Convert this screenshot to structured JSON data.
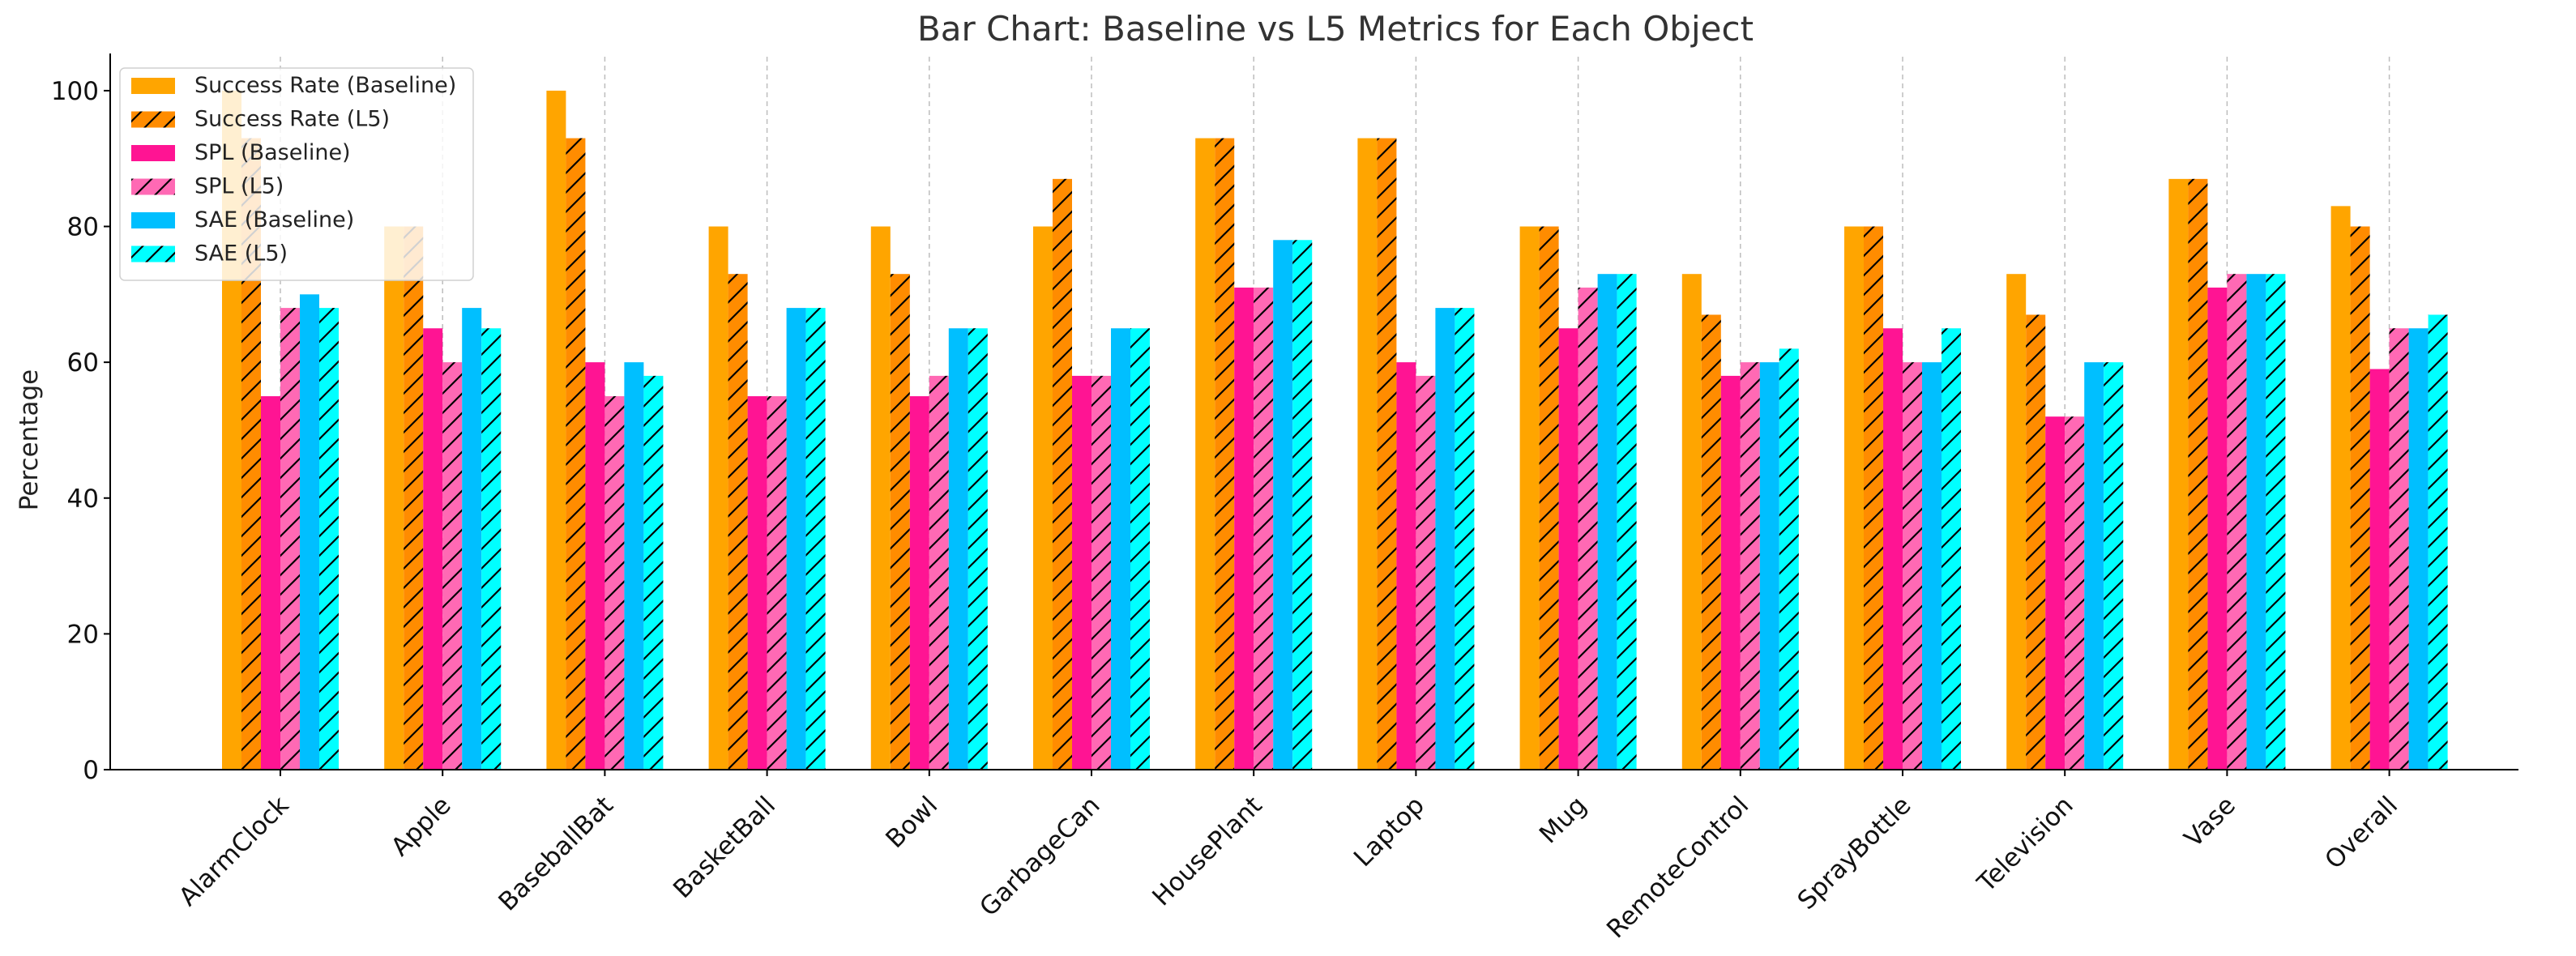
{
  "chart_data": {
    "type": "bar",
    "title": "Bar Chart: Baseline vs L5 Metrics for Each Object",
    "xlabel": "",
    "ylabel": "Percentage",
    "ylim": [
      0,
      105
    ],
    "yticks": [
      0,
      20,
      40,
      60,
      80,
      100
    ],
    "grid": "vertical-dashed",
    "legend_position": "top-left",
    "categories": [
      "AlarmClock",
      "Apple",
      "BaseballBat",
      "BasketBall",
      "Bowl",
      "GarbageCan",
      "HousePlant",
      "Laptop",
      "Mug",
      "RemoteControl",
      "SprayBottle",
      "Television",
      "Vase",
      "Overall"
    ],
    "series": [
      {
        "name": "Success Rate (Baseline)",
        "color": "#FFA500",
        "hatch": false,
        "values": [
          100,
          80,
          100,
          80,
          80,
          80,
          93,
          93,
          80,
          73,
          80,
          73,
          87,
          83
        ]
      },
      {
        "name": "Success Rate (L5)",
        "color": "#FF8C00",
        "hatch": true,
        "values": [
          93,
          80,
          93,
          73,
          73,
          87,
          93,
          93,
          80,
          67,
          80,
          67,
          87,
          80
        ]
      },
      {
        "name": "SPL (Baseline)",
        "color": "#FF1493",
        "hatch": false,
        "values": [
          55,
          65,
          60,
          55,
          55,
          58,
          71,
          60,
          65,
          58,
          65,
          52,
          71,
          59
        ]
      },
      {
        "name": "SPL (L5)",
        "color": "#FF69B4",
        "hatch": true,
        "values": [
          68,
          60,
          55,
          55,
          58,
          58,
          71,
          58,
          71,
          60,
          60,
          52,
          73,
          65
        ]
      },
      {
        "name": "SAE (Baseline)",
        "color": "#00BFFF",
        "hatch": false,
        "values": [
          70,
          68,
          60,
          68,
          65,
          65,
          78,
          68,
          73,
          60,
          60,
          60,
          73,
          65
        ]
      },
      {
        "name": "SAE (L5)",
        "color": "#00FFFF",
        "hatch": true,
        "values": [
          68,
          65,
          58,
          68,
          65,
          65,
          78,
          68,
          73,
          62,
          65,
          60,
          73,
          67
        ]
      }
    ]
  }
}
